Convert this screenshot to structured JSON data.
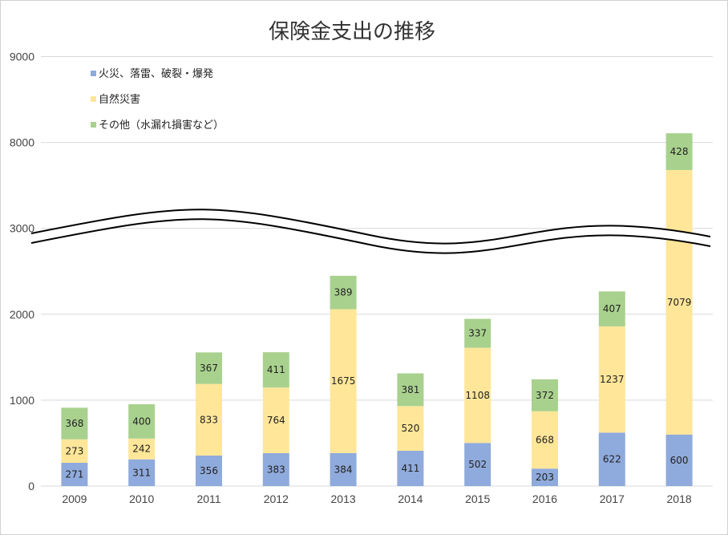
{
  "chart_data": {
    "type": "bar",
    "stacked": true,
    "title": "保険金支出の推移",
    "categories": [
      "2009",
      "2010",
      "2011",
      "2012",
      "2013",
      "2014",
      "2015",
      "2016",
      "2017",
      "2018"
    ],
    "series": [
      {
        "name": "火災、落雷、破裂・爆発",
        "color": "#8faadc",
        "values": [
          271,
          311,
          356,
          383,
          384,
          411,
          502,
          203,
          622,
          600
        ]
      },
      {
        "name": "自然災害",
        "color": "#ffe699",
        "values": [
          273,
          242,
          833,
          764,
          1675,
          520,
          1108,
          668,
          1237,
          7079
        ]
      },
      {
        "name": "その他（水漏れ損害など）",
        "color": "#a9d18e",
        "values": [
          368,
          400,
          367,
          411,
          389,
          381,
          337,
          372,
          407,
          428
        ]
      }
    ],
    "y_ticks": [
      "0",
      "1000",
      "2000",
      "3000",
      "8000",
      "9000"
    ],
    "axis_break": {
      "lower_max": 3000,
      "upper_min": 7000
    },
    "ylim": [
      0,
      9000
    ],
    "grid": true,
    "legend": "top-left"
  }
}
